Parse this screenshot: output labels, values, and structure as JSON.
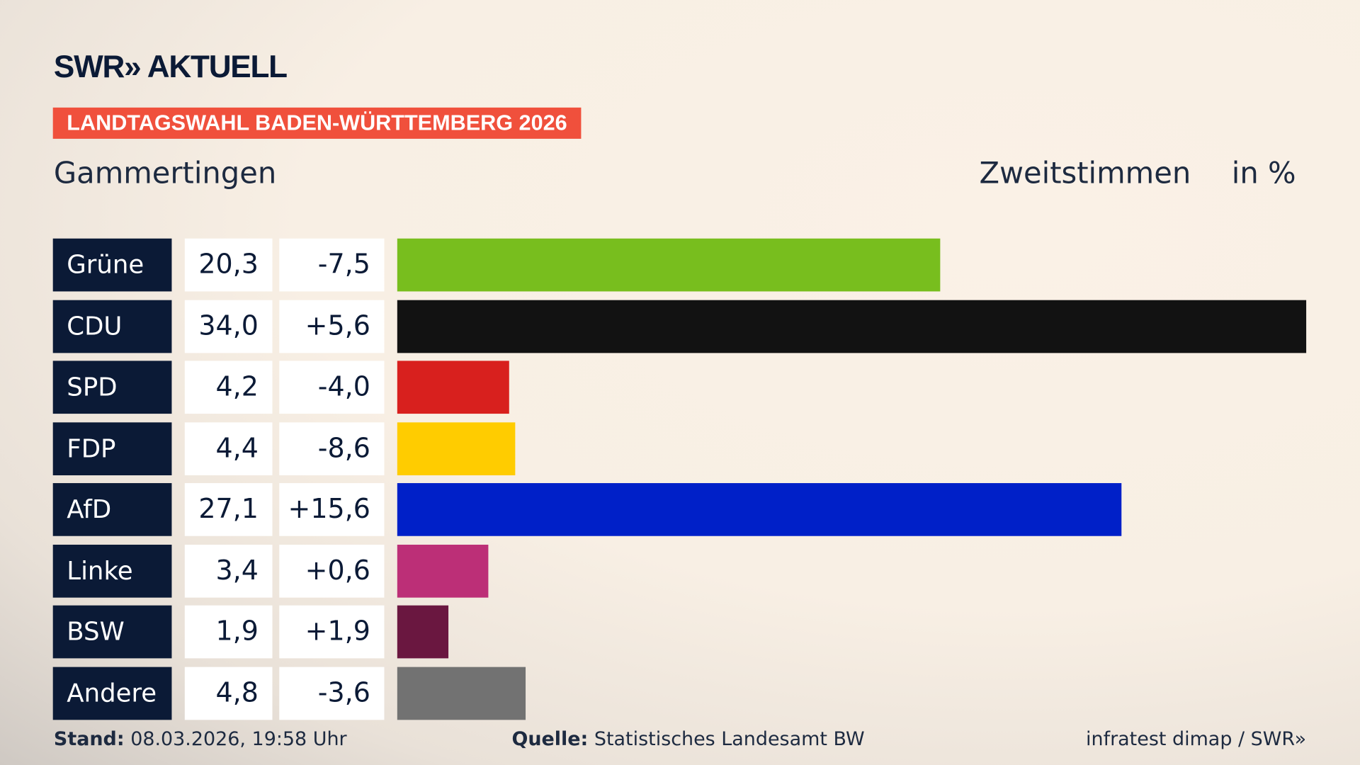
{
  "header": {
    "logo": "SWR» AKTUELL",
    "banner": "LANDTAGSWAHL BADEN-WÜRTTEMBERG 2026",
    "place": "Gammertingen",
    "vote_type": "Zweitstimmen",
    "unit": "in %"
  },
  "chart_data": {
    "type": "bar",
    "orientation": "horizontal",
    "categories": [
      "Grüne",
      "CDU",
      "SPD",
      "FDP",
      "AfD",
      "Linke",
      "BSW",
      "Andere"
    ],
    "values": [
      20.3,
      34.0,
      4.2,
      4.4,
      27.1,
      3.4,
      1.9,
      4.8
    ],
    "value_labels": [
      "20,3",
      "34,0",
      "4,2",
      "4,4",
      "27,1",
      "3,4",
      "1,9",
      "4,8"
    ],
    "changes": [
      "-7,5",
      "+5,6",
      "-4,0",
      "-8,6",
      "+15,6",
      "+0,6",
      "+1,9",
      "-3,6"
    ],
    "colors": [
      "#78be1e",
      "#121212",
      "#d8201e",
      "#ffcc00",
      "#0020c8",
      "#bc2f77",
      "#6a1740",
      "#727272"
    ],
    "xlim": [
      0,
      34.0
    ]
  },
  "footer": {
    "stand_label": "Stand:",
    "stand_value": "08.03.2026, 19:58 Uhr",
    "source_label": "Quelle:",
    "source_value": "Statistisches Landesamt BW",
    "credit": "infratest dimap / SWR»"
  }
}
